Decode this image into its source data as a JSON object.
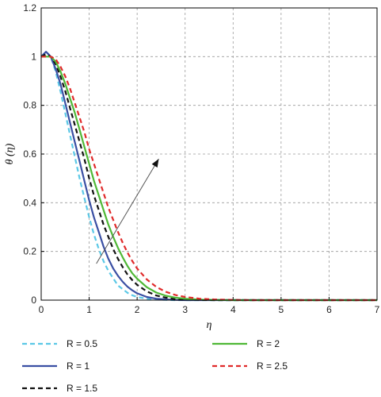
{
  "chart_data": {
    "type": "line",
    "xlabel": "η",
    "ylabel": "θ (η)",
    "xlim": [
      0,
      7
    ],
    "ylim": [
      0,
      1.2
    ],
    "xticks": [
      0,
      1,
      2,
      3,
      4,
      5,
      6,
      7
    ],
    "yticks": [
      0,
      0.2,
      0.4,
      0.6,
      0.8,
      1,
      1.2
    ],
    "grid": true,
    "legend_position": "bottom",
    "annotation": {
      "type": "arrow",
      "from": [
        1.15,
        0.15
      ],
      "to": [
        2.45,
        0.58
      ]
    },
    "x": [
      0,
      0.1,
      0.2,
      0.3,
      0.4,
      0.5,
      0.6,
      0.7,
      0.8,
      0.9,
      1.0,
      1.1,
      1.2,
      1.3,
      1.4,
      1.5,
      1.6,
      1.7,
      1.8,
      1.9,
      2.0,
      2.2,
      2.4,
      2.6,
      2.8,
      3.0,
      3.3,
      3.6,
      4.0,
      4.4,
      4.8,
      5.2,
      5.6,
      6.0,
      6.5,
      7.0
    ],
    "series": [
      {
        "name": "R = 0.5",
        "color": "#5bc8e6",
        "dash": "6,4",
        "values": [
          1.0,
          1.02,
          1.0,
          0.94,
          0.86,
          0.77,
          0.68,
          0.59,
          0.5,
          0.42,
          0.34,
          0.27,
          0.21,
          0.16,
          0.12,
          0.09,
          0.06,
          0.045,
          0.03,
          0.02,
          0.013,
          0.006,
          0.003,
          0.001,
          0,
          0,
          0,
          0,
          0,
          0,
          0,
          0,
          0,
          0,
          0,
          0
        ]
      },
      {
        "name": "R = 1",
        "color": "#3a4fa3",
        "dash": "",
        "values": [
          1.0,
          1.02,
          1.0,
          0.95,
          0.89,
          0.81,
          0.73,
          0.65,
          0.57,
          0.49,
          0.41,
          0.34,
          0.28,
          0.22,
          0.17,
          0.13,
          0.1,
          0.075,
          0.055,
          0.04,
          0.028,
          0.013,
          0.006,
          0.003,
          0.001,
          0,
          0,
          0,
          0,
          0,
          0,
          0,
          0,
          0,
          0,
          0
        ]
      },
      {
        "name": "R = 1.5",
        "color": "#111111",
        "dash": "6,4",
        "values": [
          1.0,
          1.01,
          1.0,
          0.97,
          0.92,
          0.86,
          0.79,
          0.72,
          0.65,
          0.58,
          0.5,
          0.43,
          0.37,
          0.31,
          0.26,
          0.21,
          0.17,
          0.135,
          0.105,
          0.082,
          0.063,
          0.036,
          0.019,
          0.01,
          0.005,
          0.003,
          0.001,
          0,
          0,
          0,
          0,
          0,
          0,
          0,
          0,
          0
        ]
      },
      {
        "name": "R = 2",
        "color": "#4fb836",
        "dash": "",
        "values": [
          1.0,
          1.0,
          1.0,
          0.98,
          0.94,
          0.89,
          0.83,
          0.77,
          0.7,
          0.63,
          0.56,
          0.49,
          0.43,
          0.37,
          0.31,
          0.26,
          0.215,
          0.175,
          0.14,
          0.11,
          0.088,
          0.053,
          0.031,
          0.018,
          0.01,
          0.006,
          0.002,
          0.001,
          0,
          0,
          0,
          0,
          0,
          0,
          0,
          0
        ]
      },
      {
        "name": "R = 2.5",
        "color": "#e02a2a",
        "dash": "6,4",
        "values": [
          1.0,
          1.0,
          1.0,
          0.99,
          0.96,
          0.92,
          0.87,
          0.81,
          0.75,
          0.69,
          0.62,
          0.56,
          0.5,
          0.44,
          0.38,
          0.33,
          0.28,
          0.235,
          0.195,
          0.16,
          0.13,
          0.085,
          0.054,
          0.034,
          0.021,
          0.013,
          0.006,
          0.003,
          0.001,
          0,
          0,
          0,
          0,
          0,
          0,
          0
        ]
      }
    ]
  }
}
